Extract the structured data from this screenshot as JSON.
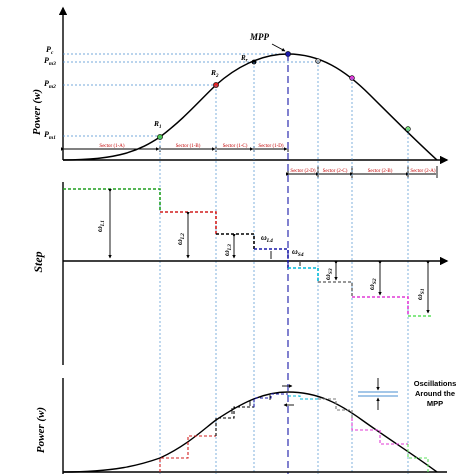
{
  "labels": {
    "ylabel_top": "Power (w)",
    "ylabel_mid": "Step",
    "ylabel_bottom": "Power (w)",
    "mpp": "MPP",
    "pc": "P",
    "pc_sub": "c",
    "pm3": "P",
    "pm3_sub": "m3",
    "pm2": "P",
    "pm2_sub": "m2",
    "pm1": "P",
    "pm1_sub": "m1",
    "r1": "R",
    "r1_sub": "1",
    "r2": "R",
    "r2_sub": "2",
    "r3": "R",
    "r3_sub": "r",
    "w_l1": "ω",
    "w_l1_sub": "L1",
    "w_l2": "ω",
    "w_l2_sub": "L2",
    "w_l3": "ω",
    "w_l3_sub": "L3",
    "w_l4": "ω",
    "w_l4_sub": "L4",
    "w_s4": "ω",
    "w_s4_sub": "S4",
    "w_s3": "ω",
    "w_s3_sub": "S3",
    "w_s2": "ω",
    "w_s2_sub": "S2",
    "w_s1": "ω",
    "w_s1_sub": "S1",
    "osc_line1": "Oscillations",
    "osc_line2": "Around the",
    "osc_line3": "MPP"
  },
  "sectors_top": [
    "Sector (1-A)",
    "Sector (1-B)",
    "Sector (1-C)",
    "Sector (1-D)"
  ],
  "sectors_bottom": [
    "Sector (2-D)",
    "Sector (2-C)",
    "Sector (2-B)",
    "Sector (2-A)"
  ],
  "colors": {
    "curve": "#000000",
    "step1": "#1f9e1f",
    "step2": "#d11f1f",
    "step3": "#000000",
    "step4": "#1a1aa8",
    "step5": "#00b8d8",
    "step6": "#777777",
    "step7": "#e03ad6",
    "step8": "#5ee05e",
    "mpp_line": "#1a1aa8",
    "sector_text": "#c00000",
    "guides": "#4a8fd0"
  }
}
